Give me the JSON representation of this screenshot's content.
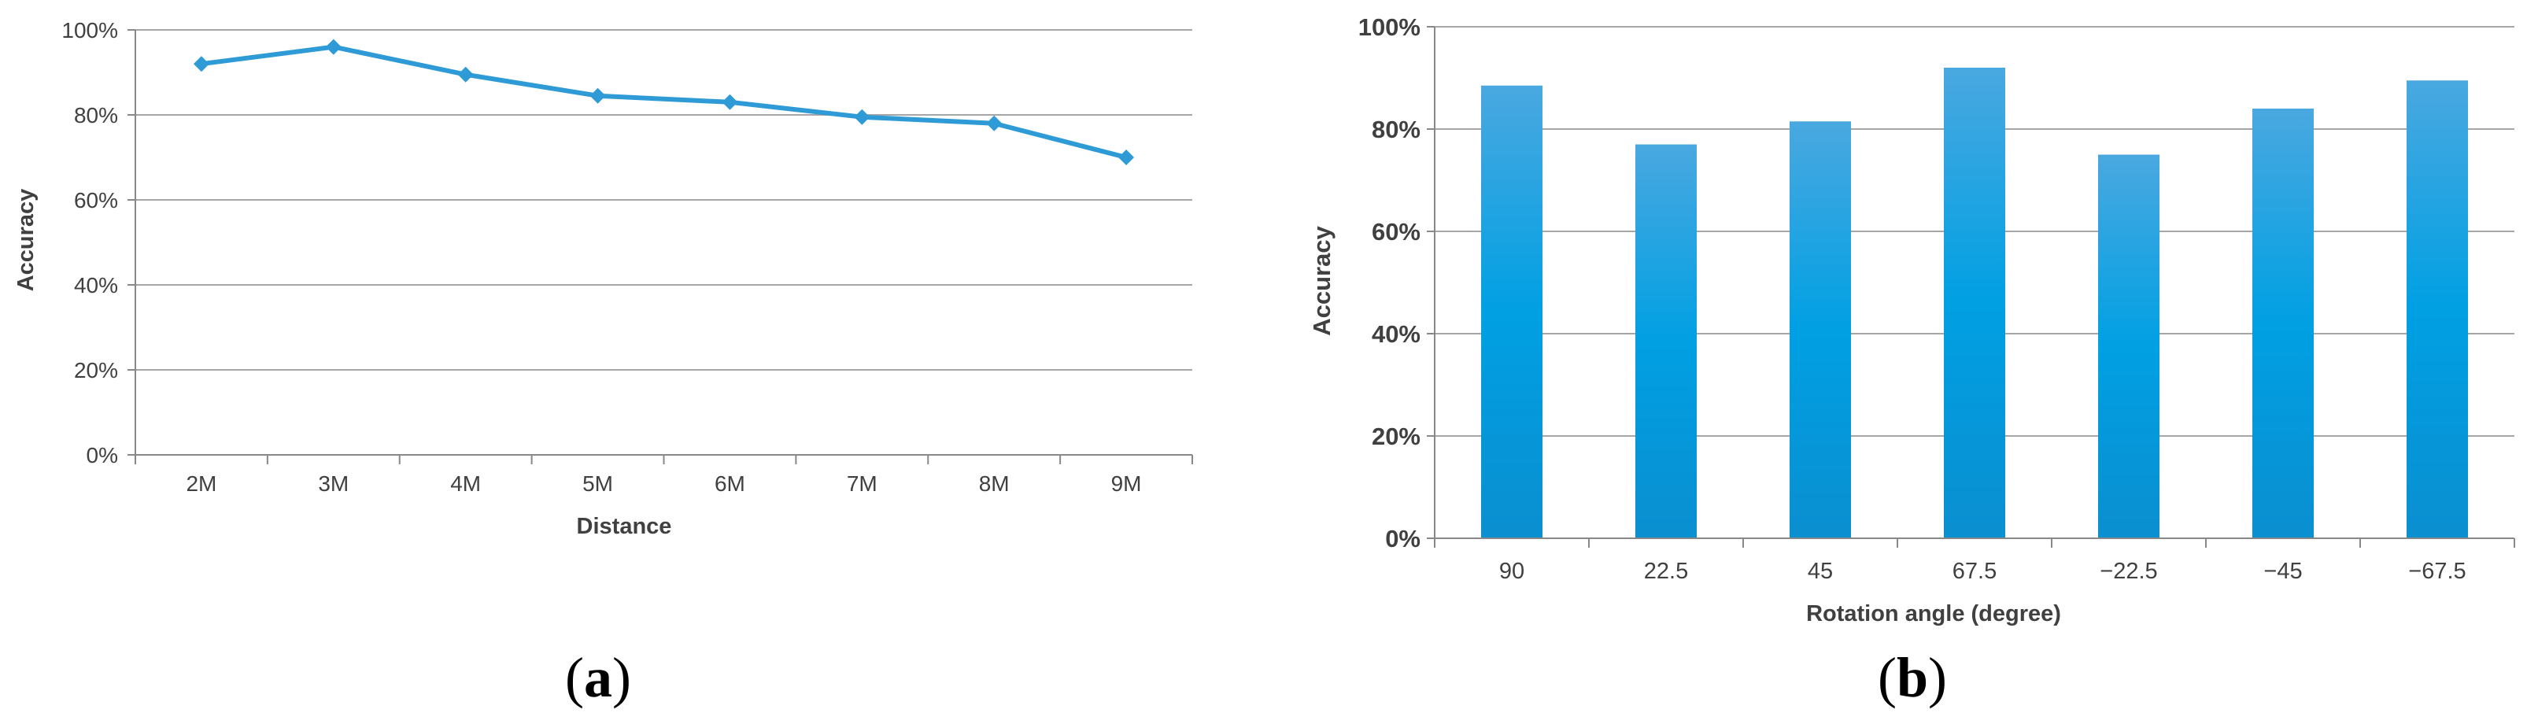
{
  "chart_data": [
    {
      "type": "line",
      "panel": "(a)",
      "panel_letter": "a",
      "categories": [
        "2M",
        "3M",
        "4M",
        "5M",
        "6M",
        "7M",
        "8M",
        "9M"
      ],
      "series": [
        {
          "values": [
            92,
            96,
            89.5,
            84.5,
            83,
            79.5,
            78,
            70
          ]
        }
      ],
      "xlabel": "Distance",
      "ylabel": "Accuracy",
      "ylim": [
        0,
        100
      ],
      "yticks": [
        "0%",
        "20%",
        "40%",
        "60%",
        "80%",
        "100%"
      ],
      "grid": true,
      "line_color": "#2e9bd6",
      "marker": "diamond"
    },
    {
      "type": "bar",
      "panel": "(b)",
      "panel_letter": "b",
      "categories": [
        "90",
        "22.5",
        "45",
        "67.5",
        "−22.5",
        "−45",
        "−67.5"
      ],
      "values": [
        88.5,
        77,
        81.5,
        92,
        75,
        84,
        89.5
      ],
      "xlabel": "Rotation angle (degree)",
      "ylabel": "Accuracy",
      "ylim": [
        0,
        100
      ],
      "yticks": [
        "0%",
        "20%",
        "40%",
        "60%",
        "80%",
        "100%"
      ],
      "grid": true,
      "bar_color_top": "#4aa8e0",
      "bar_color_mid": "#00a0e3",
      "bar_color_bottom": "#0a8fd0"
    }
  ]
}
